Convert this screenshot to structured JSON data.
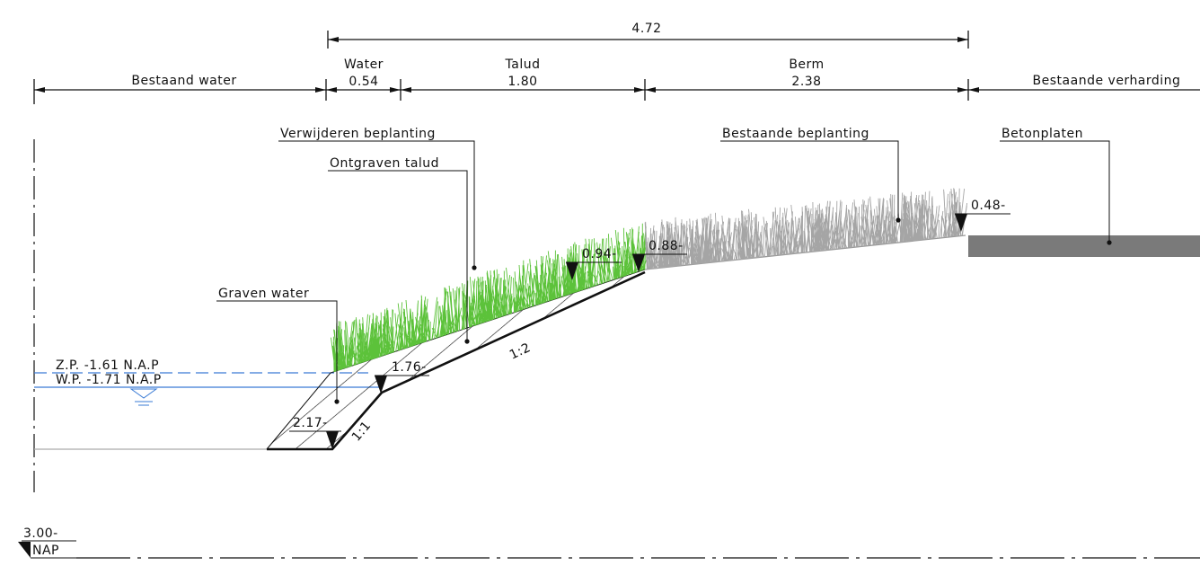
{
  "overall": {
    "value": "4.72"
  },
  "sections": [
    {
      "name": "Bestaand water"
    },
    {
      "name": "Water",
      "value": "0.54"
    },
    {
      "name": "Talud",
      "value": "1.80"
    },
    {
      "name": "Berm",
      "value": "2.38"
    },
    {
      "name": "Bestaande verharding"
    }
  ],
  "labels": [
    "Verwijderen beplanting",
    "Ontgraven talud",
    "Bestaande beplanting",
    "Betonplaten",
    "Graven water"
  ],
  "water_levels": [
    "Z.P. -1.61 N.A.P",
    "W.P. -1.71 N.A.P"
  ],
  "levels": [
    "1.76-",
    "2.17-",
    "0.94-",
    "0.88-",
    "0.48-"
  ],
  "slopes": [
    "1:2",
    "1:1"
  ],
  "reference": {
    "level": "3.00-",
    "name": "NAP"
  }
}
